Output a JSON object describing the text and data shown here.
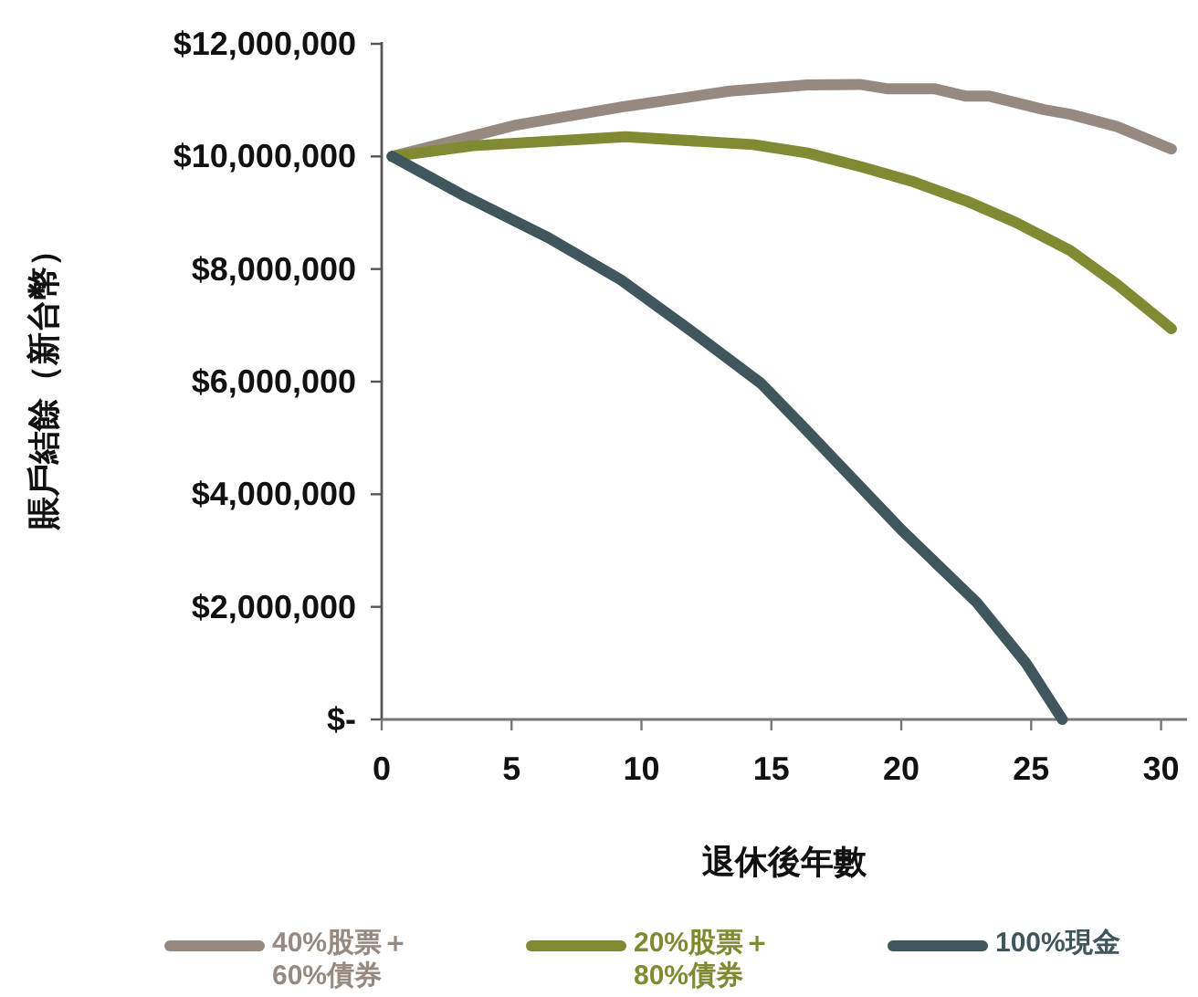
{
  "chart_data": {
    "type": "line",
    "xlabel": "退休後年數",
    "ylabel": "賬戶結餘（新台幣）",
    "xlim": [
      0,
      31
    ],
    "xticks": [
      0,
      5,
      10,
      15,
      20,
      25,
      30
    ],
    "ylim": [
      0,
      12000000
    ],
    "yticks": [
      {
        "value": 0,
        "label": "$-"
      },
      {
        "value": 2000000,
        "label": "$2,000,000"
      },
      {
        "value": 4000000,
        "label": "$4,000,000"
      },
      {
        "value": 6000000,
        "label": "$6,000,000"
      },
      {
        "value": 8000000,
        "label": "$8,000,000"
      },
      {
        "value": 10000000,
        "label": "$10,000,000"
      },
      {
        "value": 12000000,
        "label": "$12,000,000"
      }
    ],
    "grid": false,
    "legend": "bottom",
    "marker": "none",
    "line_style": "solid",
    "series": [
      {
        "name": "40%股票＋60%債券",
        "color": "#968a80",
        "x": [
          0.4,
          5.2,
          9.4,
          13.4,
          16.4,
          18.4,
          19.5,
          21.3,
          22.5,
          23.4,
          25.5,
          26.5,
          28.3,
          30.4
        ],
        "values": [
          10000000,
          10560000,
          10890000,
          11160000,
          11270000,
          11280000,
          11200000,
          11200000,
          11070000,
          11070000,
          10830000,
          10750000,
          10530000,
          10130000
        ]
      },
      {
        "name": "20%股票＋80%債券",
        "color": "#7f8a32",
        "x": [
          0.4,
          3.5,
          9.4,
          14.3,
          16.4,
          18.5,
          20.4,
          22.5,
          24.4,
          26.5,
          28.3,
          30.4
        ],
        "values": [
          10000000,
          10190000,
          10350000,
          10210000,
          10060000,
          9810000,
          9560000,
          9210000,
          8830000,
          8330000,
          7730000,
          6940000
        ]
      },
      {
        "name": "100%現金",
        "color": "#3e565c",
        "x": [
          0.4,
          3.1,
          6.4,
          9.2,
          11.8,
          14.6,
          16.2,
          20.0,
          22.9,
          24.8,
          26.2
        ],
        "values": [
          10000000,
          9320000,
          8560000,
          7810000,
          6940000,
          5970000,
          5210000,
          3370000,
          2080000,
          1000000,
          0
        ]
      }
    ]
  }
}
